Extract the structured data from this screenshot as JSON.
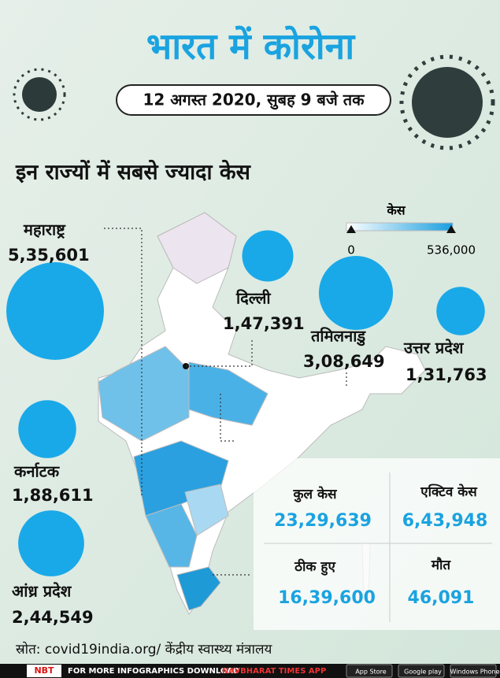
{
  "header": {
    "title": "भारत में कोरोना",
    "subtitle": "12 अगस्त 2020, सुबह 9 बजे तक",
    "heading": "इन राज्यों में सबसे ज्यादा केस"
  },
  "states": [
    {
      "name": "महाराष्ट्र",
      "cases": {
        "value": 535601,
        "label": "5,35,601"
      }
    },
    {
      "name": "दिल्ली",
      "cases": {
        "value": 147391,
        "label": "1,47,391"
      }
    },
    {
      "name": "तमिलनाडु",
      "cases": {
        "value": 308649,
        "label": "3,08,649"
      }
    },
    {
      "name": "उत्तर प्रदेश",
      "cases": {
        "value": 131763,
        "label": "1,31,763"
      }
    },
    {
      "name": "कर्नाटक",
      "cases": {
        "value": 188611,
        "label": "1,88,611"
      }
    },
    {
      "name": "आंध्र प्रदेश",
      "cases": {
        "value": 244549,
        "label": "2,44,549"
      }
    }
  ],
  "legend": {
    "title": "केस",
    "min": 0,
    "max": {
      "value": 536000,
      "label": "536,000"
    }
  },
  "totals": [
    {
      "label": "कुल केस",
      "value": "23,29,639"
    },
    {
      "label": "एक्टिव केस",
      "value": "6,43,948"
    },
    {
      "label": "ठीक हुए",
      "value": "16,39,600"
    },
    {
      "label": "मौत",
      "value": "46,091"
    }
  ],
  "source": "स्रोत: covid19india.org/ केंद्रीय स्वास्थ्य मंत्रालय",
  "footer": {
    "logo": "NBT",
    "text": "FOR MORE INFOGRAPHICS DOWNLOAD",
    "app": "NAVBHARAT TIMES APP",
    "badges": [
      "App Store",
      "Google play",
      "Windows Phone"
    ]
  }
}
